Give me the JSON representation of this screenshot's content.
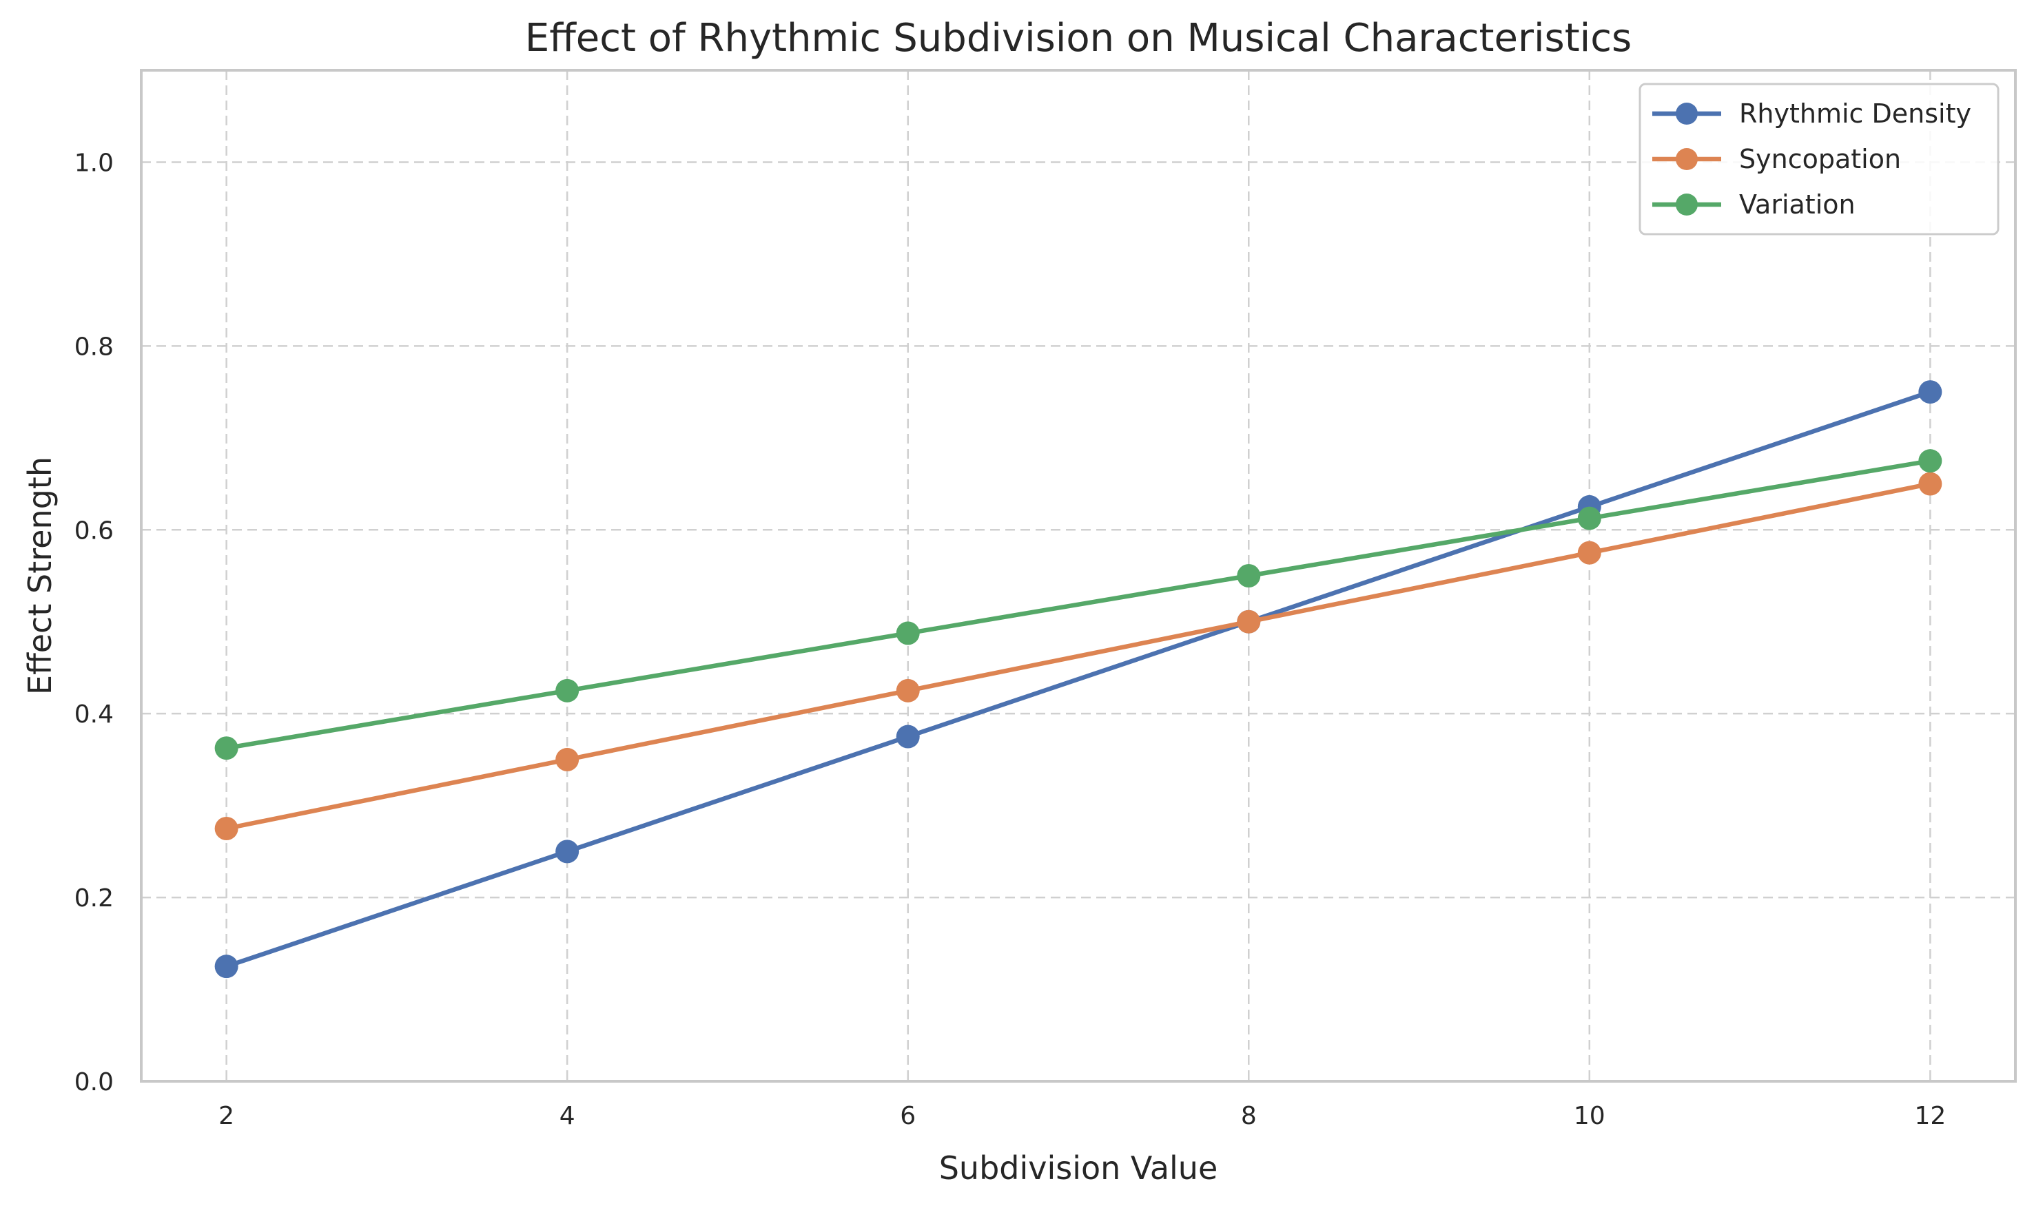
{
  "chart_data": {
    "type": "line",
    "title": "Effect of Rhythmic Subdivision on Musical Characteristics",
    "xlabel": "Subdivision Value",
    "ylabel": "Effect Strength",
    "x": [
      2,
      4,
      6,
      8,
      10,
      12
    ],
    "xlim": [
      1.5,
      12.5
    ],
    "ylim": [
      0,
      1.1
    ],
    "xticks": [
      2,
      4,
      6,
      8,
      10,
      12
    ],
    "yticks": [
      0.0,
      0.2,
      0.4,
      0.6,
      0.8,
      1.0
    ],
    "xtick_labels": [
      "2",
      "4",
      "6",
      "8",
      "10",
      "12"
    ],
    "ytick_labels": [
      "0.0",
      "0.2",
      "0.4",
      "0.6",
      "0.8",
      "1.0"
    ],
    "grid": true,
    "legend_position": "top-right",
    "series": [
      {
        "name": "Rhythmic Density",
        "color": "#4c72b0",
        "values": [
          0.125,
          0.25,
          0.375,
          0.5,
          0.625,
          0.75
        ]
      },
      {
        "name": "Syncopation",
        "color": "#dd8452",
        "values": [
          0.275,
          0.35,
          0.425,
          0.5,
          0.575,
          0.65
        ]
      },
      {
        "name": "Variation",
        "color": "#55a868",
        "values": [
          0.3625,
          0.425,
          0.4875,
          0.55,
          0.6125,
          0.675
        ]
      }
    ]
  }
}
